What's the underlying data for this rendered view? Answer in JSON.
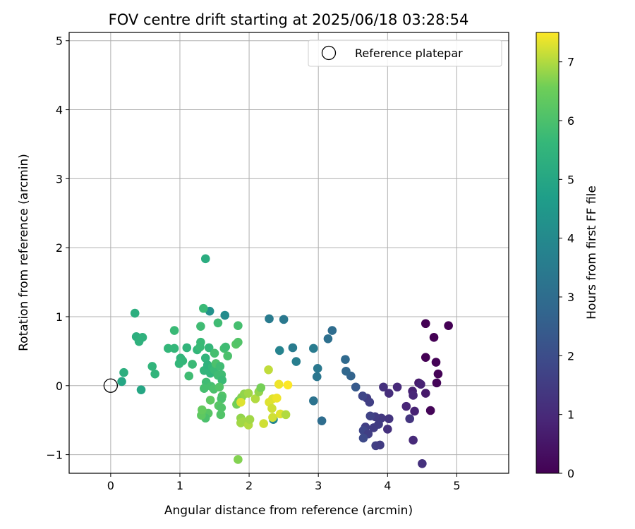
{
  "chart_data": {
    "type": "scatter",
    "title": "FOV centre drift starting at 2025/06/18 03:28:54",
    "xlabel": "Angular distance from reference (arcmin)",
    "ylabel": "Rotation from reference (arcmin)",
    "xlim": [
      -0.6,
      5.75
    ],
    "ylim": [
      -1.27,
      5.12
    ],
    "xticks": [
      0,
      1,
      2,
      3,
      4,
      5
    ],
    "yticks": [
      -1,
      0,
      1,
      2,
      3,
      4,
      5
    ],
    "grid": true,
    "legend": {
      "position": "top-right",
      "entries": [
        "Reference platepar"
      ]
    },
    "reference_point": {
      "x": 0,
      "y": 0
    },
    "colorbar": {
      "label": "Hours from first FF file",
      "colormap": "viridis",
      "min": 0,
      "max": 7.5,
      "ticks": [
        0,
        1,
        2,
        3,
        4,
        5,
        6,
        7
      ]
    },
    "series": [
      {
        "points": [
          {
            "x": 4.55,
            "y": 0.9,
            "c": 0.0
          },
          {
            "x": 4.88,
            "y": 0.87,
            "c": 0.0
          },
          {
            "x": 4.67,
            "y": 0.7,
            "c": 0.0
          },
          {
            "x": 4.55,
            "y": 0.41,
            "c": 0.0
          },
          {
            "x": 4.7,
            "y": 0.34,
            "c": 0.05
          },
          {
            "x": 4.73,
            "y": 0.17,
            "c": 0.05
          },
          {
            "x": 4.71,
            "y": 0.04,
            "c": 0.1
          },
          {
            "x": 4.62,
            "y": -0.36,
            "c": 0.1
          },
          {
            "x": 4.45,
            "y": 0.04,
            "c": 0.6
          },
          {
            "x": 4.48,
            "y": 0.02,
            "c": 0.8
          },
          {
            "x": 4.55,
            "y": -0.11,
            "c": 0.6
          },
          {
            "x": 4.36,
            "y": -0.08,
            "c": 0.8
          },
          {
            "x": 4.37,
            "y": -0.14,
            "c": 0.9
          },
          {
            "x": 4.39,
            "y": -0.37,
            "c": 0.8
          },
          {
            "x": 4.27,
            "y": -0.3,
            "c": 0.9
          },
          {
            "x": 4.32,
            "y": -0.48,
            "c": 1.3
          },
          {
            "x": 4.37,
            "y": -0.79,
            "c": 1.0
          },
          {
            "x": 4.5,
            "y": -1.13,
            "c": 1.2
          },
          {
            "x": 4.14,
            "y": -0.02,
            "c": 1.0
          },
          {
            "x": 3.94,
            "y": -0.02,
            "c": 1.2
          },
          {
            "x": 4.02,
            "y": -0.11,
            "c": 1.1
          },
          {
            "x": 3.7,
            "y": -0.18,
            "c": 1.5
          },
          {
            "x": 3.74,
            "y": -0.24,
            "c": 1.6
          },
          {
            "x": 3.64,
            "y": -0.15,
            "c": 1.8
          },
          {
            "x": 3.91,
            "y": -0.47,
            "c": 1.4
          },
          {
            "x": 4.02,
            "y": -0.48,
            "c": 1.3
          },
          {
            "x": 3.82,
            "y": -0.45,
            "c": 1.5
          },
          {
            "x": 3.75,
            "y": -0.44,
            "c": 1.7
          },
          {
            "x": 3.87,
            "y": -0.56,
            "c": 1.5
          },
          {
            "x": 4.0,
            "y": -0.63,
            "c": 1.2
          },
          {
            "x": 3.8,
            "y": -0.61,
            "c": 1.5
          },
          {
            "x": 3.68,
            "y": -0.6,
            "c": 1.6
          },
          {
            "x": 3.65,
            "y": -0.65,
            "c": 1.8
          },
          {
            "x": 3.72,
            "y": -0.7,
            "c": 1.6
          },
          {
            "x": 3.65,
            "y": -0.76,
            "c": 1.9
          },
          {
            "x": 3.83,
            "y": -0.87,
            "c": 1.6
          },
          {
            "x": 3.89,
            "y": -0.86,
            "c": 1.5
          },
          {
            "x": 3.54,
            "y": -0.02,
            "c": 2.4
          },
          {
            "x": 3.47,
            "y": 0.14,
            "c": 2.7
          },
          {
            "x": 3.4,
            "y": 0.21,
            "c": 2.8
          },
          {
            "x": 3.39,
            "y": 0.38,
            "c": 2.9
          },
          {
            "x": 3.2,
            "y": 0.8,
            "c": 3.0
          },
          {
            "x": 3.14,
            "y": 0.68,
            "c": 3.1
          },
          {
            "x": 2.29,
            "y": 0.97,
            "c": 3.5
          },
          {
            "x": 2.5,
            "y": 0.96,
            "c": 3.4
          },
          {
            "x": 2.63,
            "y": 0.55,
            "c": 3.5
          },
          {
            "x": 2.44,
            "y": 0.51,
            "c": 3.8
          },
          {
            "x": 2.68,
            "y": 0.35,
            "c": 3.6
          },
          {
            "x": 2.93,
            "y": 0.54,
            "c": 3.5
          },
          {
            "x": 2.99,
            "y": 0.25,
            "c": 3.4
          },
          {
            "x": 2.98,
            "y": 0.13,
            "c": 3.3
          },
          {
            "x": 2.93,
            "y": -0.22,
            "c": 3.2
          },
          {
            "x": 3.05,
            "y": -0.51,
            "c": 3.0
          },
          {
            "x": 2.35,
            "y": -0.49,
            "c": 3.9
          },
          {
            "x": 1.65,
            "y": 1.02,
            "c": 4.1
          },
          {
            "x": 1.43,
            "y": 1.08,
            "c": 4.3
          },
          {
            "x": 1.37,
            "y": 1.84,
            "c": 5.2
          },
          {
            "x": 0.35,
            "y": 1.05,
            "c": 5.3
          },
          {
            "x": 0.37,
            "y": 0.71,
            "c": 5.3
          },
          {
            "x": 0.41,
            "y": 0.64,
            "c": 5.4
          },
          {
            "x": 0.46,
            "y": 0.7,
            "c": 5.4
          },
          {
            "x": 0.19,
            "y": 0.19,
            "c": 5.3
          },
          {
            "x": 0.16,
            "y": 0.06,
            "c": 5.0
          },
          {
            "x": 0.44,
            "y": -0.06,
            "c": 5.0
          },
          {
            "x": 0.6,
            "y": 0.28,
            "c": 5.5
          },
          {
            "x": 0.64,
            "y": 0.17,
            "c": 5.5
          },
          {
            "x": 0.83,
            "y": 0.54,
            "c": 5.6
          },
          {
            "x": 0.92,
            "y": 0.54,
            "c": 5.6
          },
          {
            "x": 0.92,
            "y": 0.8,
            "c": 5.7
          },
          {
            "x": 0.99,
            "y": 0.32,
            "c": 5.6
          },
          {
            "x": 1.01,
            "y": 0.4,
            "c": 5.5
          },
          {
            "x": 1.04,
            "y": 0.36,
            "c": 5.6
          },
          {
            "x": 1.1,
            "y": 0.55,
            "c": 5.5
          },
          {
            "x": 1.13,
            "y": 0.14,
            "c": 5.8
          },
          {
            "x": 1.18,
            "y": 0.31,
            "c": 5.7
          },
          {
            "x": 1.25,
            "y": 0.52,
            "c": 5.6
          },
          {
            "x": 1.29,
            "y": 0.56,
            "c": 5.7
          },
          {
            "x": 1.3,
            "y": 0.63,
            "c": 5.7
          },
          {
            "x": 1.3,
            "y": 0.86,
            "c": 5.8
          },
          {
            "x": 1.34,
            "y": 1.12,
            "c": 5.7
          },
          {
            "x": 1.37,
            "y": 0.4,
            "c": 5.5
          },
          {
            "x": 1.35,
            "y": 0.22,
            "c": 5.5
          },
          {
            "x": 1.4,
            "y": 0.3,
            "c": 5.4
          },
          {
            "x": 1.42,
            "y": 0.55,
            "c": 5.6
          },
          {
            "x": 1.44,
            "y": 0.18,
            "c": 5.5
          },
          {
            "x": 1.47,
            "y": 0.27,
            "c": 5.6
          },
          {
            "x": 1.5,
            "y": 0.23,
            "c": 5.7
          },
          {
            "x": 1.5,
            "y": 0.47,
            "c": 5.9
          },
          {
            "x": 1.52,
            "y": 0.32,
            "c": 6.0
          },
          {
            "x": 1.55,
            "y": 0.15,
            "c": 5.8
          },
          {
            "x": 1.55,
            "y": 0.91,
            "c": 5.8
          },
          {
            "x": 1.58,
            "y": 0.28,
            "c": 5.8
          },
          {
            "x": 1.6,
            "y": 0.16,
            "c": 5.8
          },
          {
            "x": 1.61,
            "y": 0.08,
            "c": 5.7
          },
          {
            "x": 1.64,
            "y": 0.54,
            "c": 5.9
          },
          {
            "x": 1.66,
            "y": 0.56,
            "c": 5.8
          },
          {
            "x": 1.69,
            "y": 0.43,
            "c": 6.0
          },
          {
            "x": 1.81,
            "y": 0.6,
            "c": 6.2
          },
          {
            "x": 1.84,
            "y": 0.63,
            "c": 6.1
          },
          {
            "x": 1.84,
            "y": 0.87,
            "c": 5.9
          },
          {
            "x": 1.38,
            "y": 0.05,
            "c": 5.8
          },
          {
            "x": 1.35,
            "y": -0.04,
            "c": 5.9
          },
          {
            "x": 1.45,
            "y": -0.01,
            "c": 5.9
          },
          {
            "x": 1.49,
            "y": -0.05,
            "c": 6.0
          },
          {
            "x": 1.57,
            "y": -0.02,
            "c": 6.1
          },
          {
            "x": 1.61,
            "y": -0.15,
            "c": 6.1
          },
          {
            "x": 1.6,
            "y": -0.19,
            "c": 6.0
          },
          {
            "x": 1.56,
            "y": -0.29,
            "c": 6.2
          },
          {
            "x": 1.6,
            "y": -0.32,
            "c": 6.1
          },
          {
            "x": 1.59,
            "y": -0.42,
            "c": 6.1
          },
          {
            "x": 1.44,
            "y": -0.21,
            "c": 6.3
          },
          {
            "x": 1.41,
            "y": -0.4,
            "c": 6.2
          },
          {
            "x": 1.37,
            "y": -0.47,
            "c": 6.0
          },
          {
            "x": 1.31,
            "y": -0.43,
            "c": 6.3
          },
          {
            "x": 1.32,
            "y": -0.35,
            "c": 6.4
          },
          {
            "x": 1.82,
            "y": -0.27,
            "c": 6.6
          },
          {
            "x": 1.85,
            "y": -0.22,
            "c": 6.5
          },
          {
            "x": 1.89,
            "y": -0.17,
            "c": 6.7
          },
          {
            "x": 1.93,
            "y": -0.12,
            "c": 6.8
          },
          {
            "x": 1.99,
            "y": -0.11,
            "c": 6.9
          },
          {
            "x": 1.88,
            "y": -0.24,
            "c": 7.3
          },
          {
            "x": 1.88,
            "y": -0.47,
            "c": 6.8
          },
          {
            "x": 1.92,
            "y": -0.52,
            "c": 6.9
          },
          {
            "x": 1.88,
            "y": -0.54,
            "c": 6.9
          },
          {
            "x": 1.99,
            "y": -0.57,
            "c": 7.0
          },
          {
            "x": 2.01,
            "y": -0.49,
            "c": 6.9
          },
          {
            "x": 2.09,
            "y": -0.19,
            "c": 7.0
          },
          {
            "x": 2.14,
            "y": -0.09,
            "c": 6.8
          },
          {
            "x": 2.17,
            "y": -0.03,
            "c": 6.6
          },
          {
            "x": 2.21,
            "y": -0.55,
            "c": 7.2
          },
          {
            "x": 2.28,
            "y": 0.23,
            "c": 7.1
          },
          {
            "x": 2.29,
            "y": -0.24,
            "c": 7.3
          },
          {
            "x": 2.33,
            "y": -0.33,
            "c": 7.2
          },
          {
            "x": 2.34,
            "y": -0.46,
            "c": 7.2
          },
          {
            "x": 2.34,
            "y": -0.19,
            "c": 7.3
          },
          {
            "x": 2.4,
            "y": -0.18,
            "c": 7.4
          },
          {
            "x": 2.45,
            "y": -0.41,
            "c": 7.3
          },
          {
            "x": 2.43,
            "y": 0.02,
            "c": 7.4
          },
          {
            "x": 2.53,
            "y": -0.42,
            "c": 7.0
          },
          {
            "x": 2.56,
            "y": 0.01,
            "c": 7.5
          },
          {
            "x": 1.84,
            "y": -1.07,
            "c": 6.7
          }
        ]
      }
    ]
  }
}
